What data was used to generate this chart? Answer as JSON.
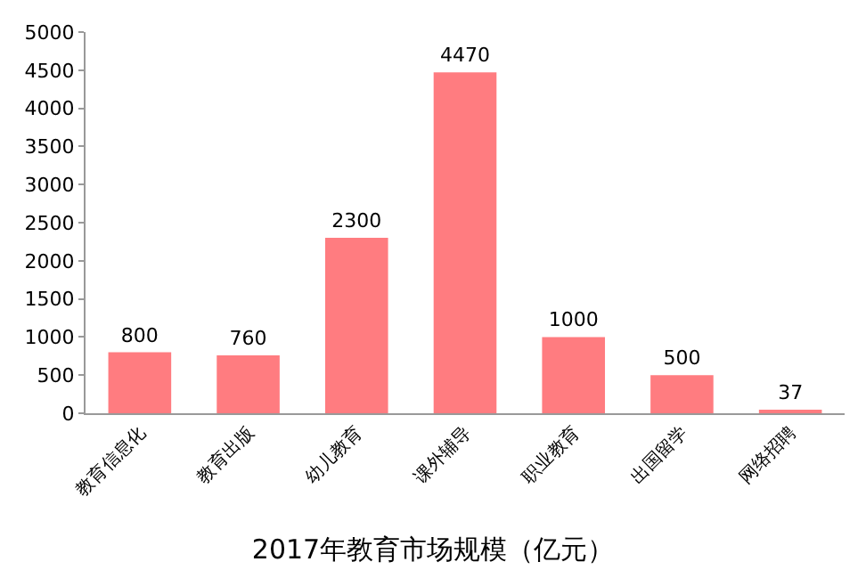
{
  "chart_data": {
    "type": "bar",
    "title": "2017年教育市场规模（亿元）",
    "categories": [
      "教育信息化",
      "教育出版",
      "幼儿教育",
      "课外辅导",
      "职业教育",
      "出国留学",
      "网络招聘"
    ],
    "values": [
      800,
      760,
      2300,
      4470,
      1000,
      500,
      37
    ],
    "color": "#ff7c80",
    "ylim": [
      0,
      5000
    ],
    "yticks": [
      0,
      500,
      1000,
      1500,
      2000,
      2500,
      3000,
      3500,
      4000,
      4500,
      5000
    ],
    "data_labels": true
  }
}
